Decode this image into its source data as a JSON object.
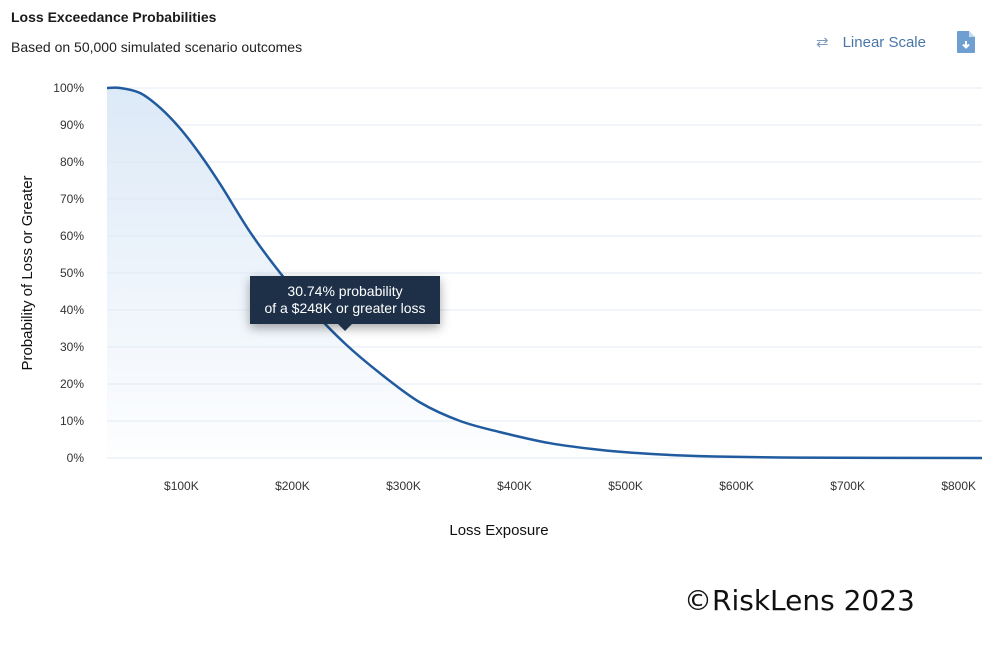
{
  "header": {
    "title": "Loss Exceedance Probabilities",
    "subtitle": "Based on 50,000 simulated scenario outcomes"
  },
  "toolbar": {
    "scale_label": "Linear Scale",
    "scale_icon": "swap-arrows-icon",
    "export_icon": "file-download-icon"
  },
  "tooltip": {
    "line1": "30.74% probability",
    "line2": "of a $248K or greater loss",
    "x": 248,
    "y": 30.74
  },
  "footer": {
    "copyright": "©RiskLens 2023"
  },
  "colors": {
    "line": "#1f5b9e",
    "fill": "#dce9f7",
    "grid": "#e3eaf2",
    "tooltip_bg": "#1e3048",
    "accent": "#4a77a8"
  },
  "chart_data": {
    "type": "area",
    "title": "Loss Exceedance Probabilities",
    "xlabel": "Loss Exposure",
    "ylabel": "Probability of Loss or Greater",
    "xlim": [
      33,
      821
    ],
    "ylim": [
      0,
      100
    ],
    "grid": true,
    "x_ticks": [
      {
        "v": 100,
        "label": "$100K"
      },
      {
        "v": 200,
        "label": "$200K"
      },
      {
        "v": 300,
        "label": "$300K"
      },
      {
        "v": 400,
        "label": "$400K"
      },
      {
        "v": 500,
        "label": "$500K"
      },
      {
        "v": 600,
        "label": "$600K"
      },
      {
        "v": 700,
        "label": "$700K"
      },
      {
        "v": 800,
        "label": "$800K"
      }
    ],
    "y_ticks": [
      {
        "v": 0,
        "label": "0%"
      },
      {
        "v": 10,
        "label": "10%"
      },
      {
        "v": 20,
        "label": "20%"
      },
      {
        "v": 30,
        "label": "30%"
      },
      {
        "v": 40,
        "label": "40%"
      },
      {
        "v": 50,
        "label": "50%"
      },
      {
        "v": 60,
        "label": "60%"
      },
      {
        "v": 70,
        "label": "70%"
      },
      {
        "v": 80,
        "label": "80%"
      },
      {
        "v": 90,
        "label": "90%"
      },
      {
        "v": 100,
        "label": "100%"
      }
    ],
    "x": [
      33,
      45,
      63,
      81,
      99,
      117,
      135,
      162,
      189,
      216,
      248,
      281,
      315,
      351,
      387,
      432,
      477,
      522,
      567,
      658,
      821
    ],
    "y": [
      100,
      100,
      98.6,
      94.6,
      89,
      82,
      74,
      61,
      50,
      40.5,
      30.74,
      22.4,
      15,
      10,
      7,
      4,
      2.2,
      1.1,
      0.5,
      0.1,
      0
    ]
  }
}
